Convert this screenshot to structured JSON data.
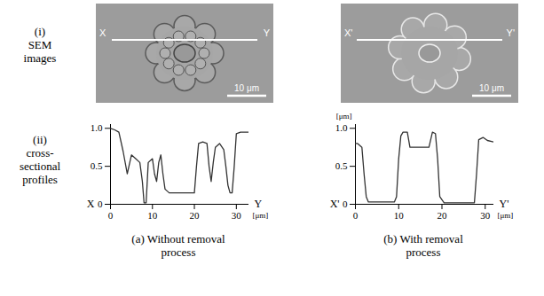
{
  "row_labels": [
    [
      "(i)",
      "SEM",
      "images"
    ],
    [
      "(ii)",
      "cross-",
      "sectional",
      "profiles"
    ]
  ],
  "images": [
    {
      "line_start": "X",
      "line_end": "Y",
      "scale_bar": "10 μm"
    },
    {
      "line_start": "X'",
      "line_end": "Y'",
      "scale_bar": "10 μm"
    }
  ],
  "panel_captions": [
    [
      "(a) Without removal",
      "process"
    ],
    [
      "(b) With removal",
      "process"
    ]
  ],
  "chart_data": [
    {
      "type": "line",
      "x": [
        0,
        1,
        2,
        3,
        4,
        5,
        6,
        7,
        7.6,
        8,
        8.5,
        9,
        10,
        10.5,
        11,
        11.5,
        12,
        12.5,
        13,
        14,
        16,
        18,
        20,
        20.5,
        21,
        22,
        23,
        23.5,
        24,
        24.5,
        25,
        26,
        27,
        27.5,
        28,
        28.5,
        29,
        29.5,
        30,
        31,
        32,
        33
      ],
      "values": [
        1.0,
        0.98,
        0.95,
        0.7,
        0.4,
        0.65,
        0.6,
        0.55,
        0.3,
        0.02,
        0.02,
        0.55,
        0.6,
        0.4,
        0.3,
        0.55,
        0.65,
        0.4,
        0.2,
        0.15,
        0.15,
        0.15,
        0.15,
        0.5,
        0.8,
        0.82,
        0.8,
        0.5,
        0.3,
        0.55,
        0.75,
        0.8,
        0.72,
        0.5,
        0.25,
        0.15,
        0.15,
        0.5,
        0.93,
        0.95,
        0.95,
        0.95
      ],
      "xlim": [
        0,
        33
      ],
      "ylim": [
        0,
        1.05
      ],
      "xticks": [
        0,
        10,
        20,
        30
      ],
      "yticks": [
        0,
        0.5,
        {
          "value": 1,
          "label": "1.0"
        }
      ],
      "annotations": {
        "start_label": "X",
        "end_label": "Y",
        "x_unit": "[μm]"
      }
    },
    {
      "type": "line",
      "x": [
        0,
        0.5,
        1.5,
        2,
        2.5,
        3,
        5,
        7,
        9,
        9.5,
        10,
        10.5,
        11,
        12,
        12.3,
        12.6,
        14,
        16,
        17,
        17.4,
        17.8,
        18.5,
        19,
        19.5,
        20.5,
        23,
        26,
        27.5,
        28,
        28.5,
        29.5,
        30.5,
        32
      ],
      "values": [
        0.8,
        0.8,
        0.75,
        0.4,
        0.1,
        0.03,
        0.03,
        0.03,
        0.03,
        0.1,
        0.6,
        0.9,
        0.95,
        0.95,
        0.85,
        0.75,
        0.75,
        0.75,
        0.75,
        0.85,
        0.95,
        0.93,
        0.6,
        0.1,
        0.02,
        0.02,
        0.02,
        0.02,
        0.4,
        0.85,
        0.88,
        0.84,
        0.82
      ],
      "xlim": [
        0,
        32
      ],
      "ylim": [
        0,
        1.05
      ],
      "xticks": [
        0,
        10,
        20,
        30
      ],
      "yticks": [
        0,
        0.5,
        {
          "value": 1,
          "label": "1.0"
        }
      ],
      "annotations": {
        "start_label": "X'",
        "end_label": "Y'",
        "x_unit": "[μm]",
        "y_unit": "[μm]"
      }
    }
  ]
}
